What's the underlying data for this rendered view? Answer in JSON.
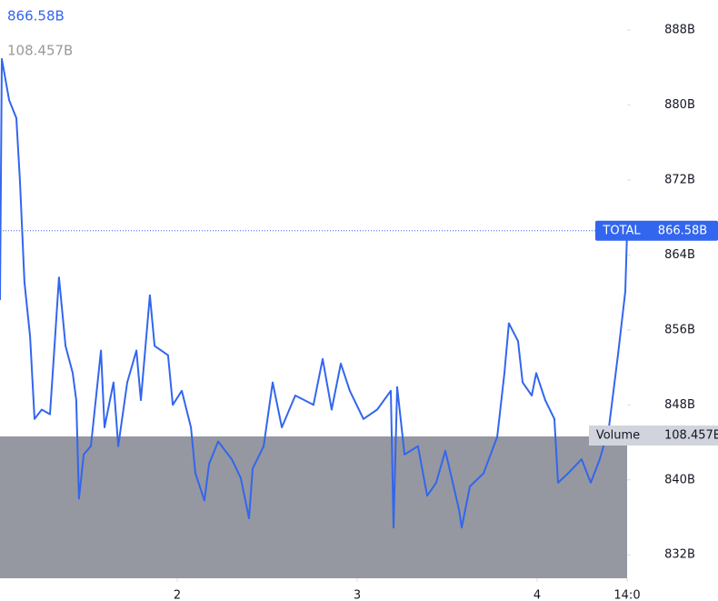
{
  "chart_data": {
    "type": "line",
    "xlim": [
      1.015,
      4.5
    ],
    "xticks": [
      2,
      3,
      4,
      {
        "value": 4.5,
        "label": "14:0"
      }
    ],
    "ylim": [
      829.5,
      891.2
    ],
    "yticks": [
      {
        "value": 888,
        "label": "888B"
      },
      {
        "value": 880,
        "label": "880B"
      },
      {
        "value": 872,
        "label": "872B"
      },
      {
        "value": 864,
        "label": "864B"
      },
      {
        "value": 856,
        "label": "856B"
      },
      {
        "value": 848,
        "label": "848B"
      },
      {
        "value": 840,
        "label": "840B"
      },
      {
        "value": 832,
        "label": "832B"
      }
    ],
    "series": [
      {
        "name": "TOTAL",
        "color": "#3366ee",
        "last_label": "866.58B",
        "x": [
          1.015,
          1.025,
          1.066,
          1.106,
          1.126,
          1.151,
          1.182,
          1.207,
          1.247,
          1.293,
          1.318,
          1.343,
          1.379,
          1.419,
          1.439,
          1.454,
          1.48,
          1.52,
          1.576,
          1.596,
          1.646,
          1.672,
          1.722,
          1.773,
          1.798,
          1.848,
          1.874,
          1.949,
          1.975,
          2.025,
          2.076,
          2.101,
          2.151,
          2.177,
          2.227,
          2.303,
          2.353,
          2.399,
          2.419,
          2.48,
          2.53,
          2.581,
          2.656,
          2.707,
          2.757,
          2.808,
          2.858,
          2.909,
          2.959,
          3.035,
          3.111,
          3.187,
          3.202,
          3.222,
          3.263,
          3.338,
          3.389,
          3.439,
          3.49,
          3.566,
          3.581,
          3.626,
          3.702,
          3.778,
          3.818,
          3.843,
          3.894,
          3.919,
          3.97,
          3.995,
          4.045,
          4.096,
          4.116,
          4.172,
          4.247,
          4.298,
          4.348,
          4.399,
          4.449,
          4.49,
          4.5
        ],
        "values": [
          859.2,
          884.9,
          880.5,
          878.6,
          871.8,
          861.1,
          855.3,
          846.5,
          847.5,
          847.0,
          854.3,
          861.6,
          854.3,
          851.4,
          848.5,
          838.0,
          842.7,
          843.6,
          853.8,
          845.6,
          850.4,
          843.6,
          850.4,
          853.8,
          848.5,
          859.7,
          854.3,
          853.3,
          848.0,
          849.5,
          845.6,
          840.7,
          837.8,
          841.7,
          844.1,
          842.2,
          840.2,
          835.9,
          841.2,
          843.6,
          850.4,
          845.6,
          849.0,
          848.5,
          848.0,
          852.9,
          847.5,
          852.4,
          849.5,
          846.5,
          847.5,
          849.5,
          834.9,
          849.9,
          842.7,
          843.6,
          838.3,
          839.7,
          843.1,
          836.8,
          834.9,
          839.3,
          840.7,
          844.6,
          851.4,
          856.7,
          854.8,
          850.4,
          849.0,
          851.4,
          848.5,
          846.5,
          839.7,
          840.7,
          842.2,
          839.7,
          842.2,
          845.6,
          853.3,
          860.1,
          866.58
        ]
      }
    ],
    "volume": {
      "name": "Volume",
      "value": 108.457,
      "value_label": "108.457B",
      "color": "#9598a1"
    }
  }
}
